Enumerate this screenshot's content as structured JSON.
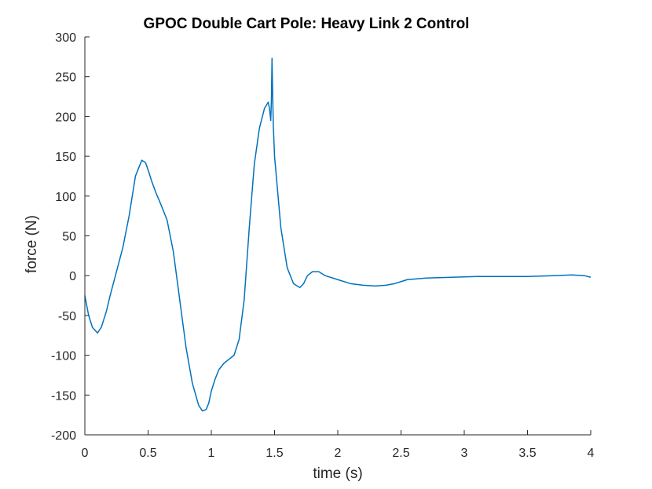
{
  "chart_data": {
    "type": "line",
    "title": "GPOC Double Cart Pole: Heavy Link 2 Control",
    "xlabel": "time (s)",
    "ylabel": "force (N)",
    "xlim": [
      0,
      4
    ],
    "ylim": [
      -200,
      300
    ],
    "xticks": [
      0,
      0.5,
      1,
      1.5,
      2,
      2.5,
      3,
      3.5,
      4
    ],
    "xtick_labels": [
      "0",
      "0.5",
      "1",
      "1.5",
      "2",
      "2.5",
      "3",
      "3.5",
      "4"
    ],
    "yticks": [
      -200,
      -150,
      -100,
      -50,
      0,
      50,
      100,
      150,
      200,
      250,
      300
    ],
    "ytick_labels": [
      "-200",
      "-150",
      "-100",
      "-50",
      "0",
      "50",
      "100",
      "150",
      "200",
      "250",
      "300"
    ],
    "grid": false,
    "legend": "none",
    "series": [
      {
        "color": "#0072BD",
        "x": [
          0,
          0.03,
          0.06,
          0.1,
          0.13,
          0.17,
          0.2,
          0.25,
          0.3,
          0.35,
          0.4,
          0.45,
          0.48,
          0.5,
          0.53,
          0.56,
          0.6,
          0.65,
          0.7,
          0.75,
          0.8,
          0.85,
          0.9,
          0.93,
          0.96,
          0.98,
          1.0,
          1.03,
          1.06,
          1.1,
          1.14,
          1.18,
          1.22,
          1.26,
          1.3,
          1.34,
          1.38,
          1.42,
          1.45,
          1.46,
          1.47,
          1.475,
          1.48,
          1.485,
          1.49,
          1.5,
          1.55,
          1.6,
          1.65,
          1.7,
          1.73,
          1.76,
          1.8,
          1.85,
          1.9,
          2.0,
          2.1,
          2.2,
          2.3,
          2.38,
          2.45,
          2.55,
          2.7,
          2.9,
          3.1,
          3.3,
          3.5,
          3.7,
          3.85,
          3.95,
          4.0
        ],
        "y": [
          -25,
          -50,
          -65,
          -72,
          -65,
          -45,
          -25,
          5,
          35,
          75,
          125,
          145,
          142,
          133,
          118,
          105,
          90,
          70,
          30,
          -30,
          -90,
          -135,
          -163,
          -170,
          -168,
          -160,
          -145,
          -130,
          -118,
          -110,
          -105,
          -100,
          -80,
          -30,
          60,
          140,
          185,
          210,
          218,
          210,
          195,
          220,
          273,
          230,
          190,
          150,
          60,
          10,
          -10,
          -15,
          -10,
          0,
          5,
          5,
          0,
          -5,
          -10,
          -12,
          -13,
          -12,
          -10,
          -5,
          -3,
          -2,
          -1,
          -1,
          -1,
          0,
          1,
          0,
          -2
        ]
      }
    ]
  }
}
